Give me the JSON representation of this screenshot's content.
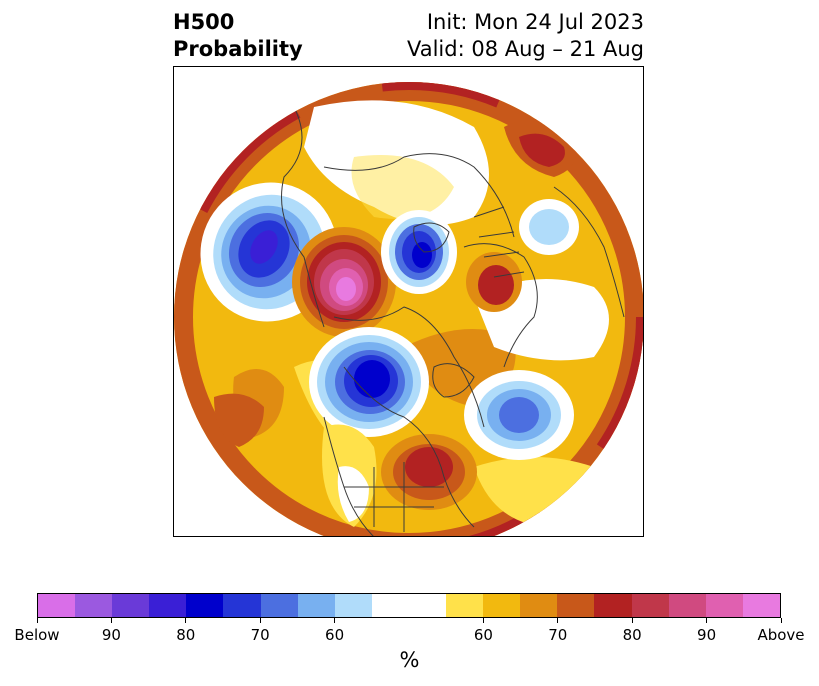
{
  "title": {
    "left_line1": "H500",
    "left_line2": "Probability",
    "right_line1": "Init: Mon 24 Jul 2023",
    "right_line2": "Valid: 08 Aug – 21 Aug"
  },
  "colorbar": {
    "colors": [
      "#d96ee8",
      "#9b59e0",
      "#6a3ad8",
      "#3a1fd6",
      "#0000cc",
      "#2535d6",
      "#4c6fe0",
      "#78b0f0",
      "#b0dcfa",
      "#ffffff",
      "#ffffff",
      "#ffe14a",
      "#f2b90f",
      "#e08c12",
      "#c8581a",
      "#b22222",
      "#c0374a",
      "#d04a80",
      "#e060b0",
      "#e87ae0"
    ],
    "labels": [
      "Below",
      "90",
      "80",
      "70",
      "60",
      "60",
      "70",
      "80",
      "90",
      "Above"
    ],
    "unit": "%"
  },
  "map": {
    "anomalies": [
      {
        "name": "pacific-negative",
        "sign": "below",
        "level": 80
      },
      {
        "name": "western-canada-positive",
        "sign": "above",
        "level": 95
      },
      {
        "name": "central-canada-negative",
        "sign": "below",
        "level": 85
      },
      {
        "name": "north-atlantic-negative",
        "sign": "below",
        "level": 75
      },
      {
        "name": "eastern-us-positive",
        "sign": "above",
        "level": 80
      },
      {
        "name": "siberia-negative",
        "sign": "below",
        "level": 60
      },
      {
        "name": "europe-positive",
        "sign": "above",
        "level": 80
      }
    ]
  }
}
